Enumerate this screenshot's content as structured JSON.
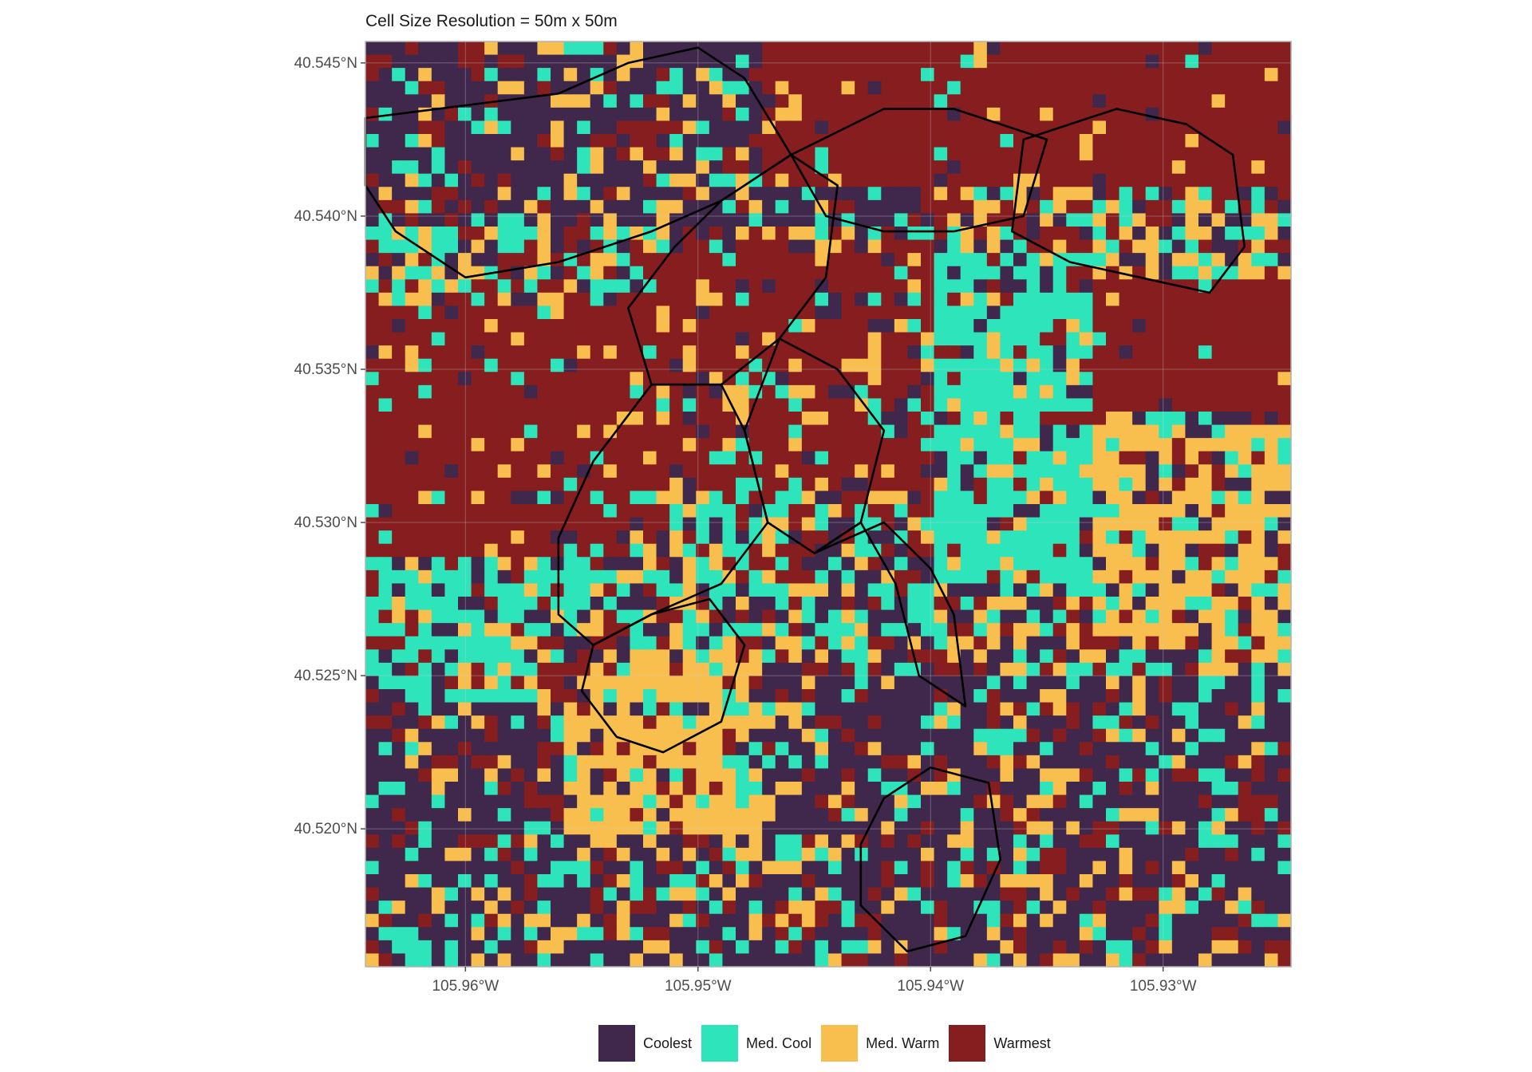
{
  "title": "Cell Size Resolution = 50m x 50m",
  "chart_data": {
    "type": "heatmap",
    "title": "Cell Size Resolution = 50m x 50m",
    "lon_range": [
      -105.9643,
      -105.9245
    ],
    "lat_range": [
      40.5155,
      40.5457
    ],
    "x_ticks": [
      {
        "value": -105.96,
        "label": "105.96°W"
      },
      {
        "value": -105.95,
        "label": "105.95°W"
      },
      {
        "value": -105.94,
        "label": "105.94°W"
      },
      {
        "value": -105.93,
        "label": "105.93°W"
      }
    ],
    "y_ticks": [
      {
        "value": 40.545,
        "label": "40.545°N"
      },
      {
        "value": 40.54,
        "label": "40.540°N"
      },
      {
        "value": 40.535,
        "label": "40.535°N"
      },
      {
        "value": 40.53,
        "label": "40.530°N"
      },
      {
        "value": 40.525,
        "label": "40.525°N"
      },
      {
        "value": 40.52,
        "label": "40.520°N"
      }
    ],
    "grid": true,
    "legend": {
      "position": "bottom",
      "entries": [
        {
          "label": "Coolest",
          "color": "#40284d"
        },
        {
          "label": "Med. Cool",
          "color": "#2ee5bb"
        },
        {
          "label": "Med. Warm",
          "color": "#f8be4e"
        },
        {
          "label": "Warmest",
          "color": "#861d1f"
        }
      ]
    },
    "cell_grid": {
      "cols": 70,
      "rows": 70,
      "classes": [
        "Coolest",
        "Med. Cool",
        "Med. Warm",
        "Warmest"
      ],
      "zones": [
        {
          "lon": [
            -105.9643,
            -105.9475
          ],
          "lat": [
            40.5432,
            40.5457
          ],
          "class": "Med. Warm",
          "mix": 0.25
        },
        {
          "lon": [
            -105.9643,
            -105.94
          ],
          "lat": [
            40.5395,
            40.5457
          ],
          "class": "Coolest",
          "mix": 0.5
        },
        {
          "lon": [
            -105.9475,
            -105.9245
          ],
          "lat": [
            40.541,
            40.5457
          ],
          "class": "Warmest",
          "mix": 0.12
        },
        {
          "lon": [
            -105.9643,
            -105.953
          ],
          "lat": [
            40.529,
            40.537
          ],
          "class": "Warmest",
          "mix": 0.2
        },
        {
          "lon": [
            -105.953,
            -105.939
          ],
          "lat": [
            40.531,
            40.539
          ],
          "class": "Warmest",
          "mix": 0.35
        },
        {
          "lon": [
            -105.933,
            -105.9245
          ],
          "lat": [
            40.5335,
            40.538
          ],
          "class": "Warmest",
          "mix": 0.1
        },
        {
          "lon": [
            -105.94,
            -105.933
          ],
          "lat": [
            40.528,
            40.539
          ],
          "class": "Med. Cool",
          "mix": 0.45
        },
        {
          "lon": [
            -105.933,
            -105.9245
          ],
          "lat": [
            40.526,
            40.533
          ],
          "class": "Med. Warm",
          "mix": 0.5
        },
        {
          "lon": [
            -105.9643,
            -105.9245
          ],
          "lat": [
            40.5155,
            40.525
          ],
          "class": "Coolest",
          "mix": 0.6
        },
        {
          "lon": [
            -105.956,
            -105.947
          ],
          "lat": [
            40.52,
            40.526
          ],
          "class": "Med. Warm",
          "mix": 0.45
        },
        {
          "lon": [
            -105.9643,
            -105.9545
          ],
          "lat": [
            40.524,
            40.529
          ],
          "class": "Med. Cool",
          "mix": 0.55
        }
      ]
    },
    "boundary_polygons": [
      [
        [
          -105.9643,
          40.5432
        ],
        [
          -105.956,
          40.544
        ],
        [
          -105.953,
          40.545
        ],
        [
          -105.95,
          40.5455
        ],
        [
          -105.948,
          40.5445
        ],
        [
          -105.946,
          40.542
        ],
        [
          -105.949,
          40.5405
        ],
        [
          -105.952,
          40.5395
        ],
        [
          -105.956,
          40.5385
        ],
        [
          -105.96,
          40.538
        ],
        [
          -105.963,
          40.5395
        ],
        [
          -105.9643,
          40.541
        ],
        [
          -105.9643,
          40.5432
        ]
      ],
      [
        [
          -105.949,
          40.5405
        ],
        [
          -105.946,
          40.542
        ],
        [
          -105.944,
          40.541
        ],
        [
          -105.9445,
          40.538
        ],
        [
          -105.9465,
          40.536
        ],
        [
          -105.949,
          40.5345
        ],
        [
          -105.952,
          40.5345
        ],
        [
          -105.953,
          40.537
        ],
        [
          -105.951,
          40.539
        ],
        [
          -105.949,
          40.5405
        ]
      ],
      [
        [
          -105.946,
          40.542
        ],
        [
          -105.942,
          40.5435
        ],
        [
          -105.939,
          40.5435
        ],
        [
          -105.935,
          40.5425
        ],
        [
          -105.936,
          40.54
        ],
        [
          -105.939,
          40.5395
        ],
        [
          -105.942,
          40.5395
        ],
        [
          -105.9445,
          40.54
        ],
        [
          -105.946,
          40.542
        ]
      ],
      [
        [
          -105.936,
          40.5425
        ],
        [
          -105.932,
          40.5435
        ],
        [
          -105.929,
          40.543
        ],
        [
          -105.927,
          40.542
        ],
        [
          -105.9265,
          40.539
        ],
        [
          -105.928,
          40.5375
        ],
        [
          -105.931,
          40.538
        ],
        [
          -105.934,
          40.5385
        ],
        [
          -105.9365,
          40.5395
        ],
        [
          -105.936,
          40.5425
        ]
      ],
      [
        [
          -105.9465,
          40.536
        ],
        [
          -105.944,
          40.535
        ],
        [
          -105.942,
          40.533
        ],
        [
          -105.943,
          40.53
        ],
        [
          -105.945,
          40.529
        ],
        [
          -105.947,
          40.53
        ],
        [
          -105.948,
          40.533
        ],
        [
          -105.9465,
          40.536
        ]
      ],
      [
        [
          -105.952,
          40.5345
        ],
        [
          -105.949,
          40.5345
        ],
        [
          -105.948,
          40.533
        ],
        [
          -105.947,
          40.53
        ],
        [
          -105.949,
          40.528
        ],
        [
          -105.952,
          40.527
        ],
        [
          -105.9545,
          40.526
        ],
        [
          -105.956,
          40.527
        ],
        [
          -105.956,
          40.5295
        ],
        [
          -105.9545,
          40.532
        ],
        [
          -105.952,
          40.5345
        ]
      ],
      [
        [
          -105.945,
          40.529
        ],
        [
          -105.943,
          40.53
        ],
        [
          -105.9415,
          40.528
        ],
        [
          -105.9405,
          40.525
        ],
        [
          -105.9385,
          40.524
        ],
        [
          -105.939,
          40.527
        ],
        [
          -105.94,
          40.5285
        ],
        [
          -105.942,
          40.53
        ],
        [
          -105.945,
          40.529
        ]
      ],
      [
        [
          -105.9545,
          40.526
        ],
        [
          -105.952,
          40.527
        ],
        [
          -105.9495,
          40.5275
        ],
        [
          -105.948,
          40.526
        ],
        [
          -105.949,
          40.5235
        ],
        [
          -105.9515,
          40.5225
        ],
        [
          -105.9535,
          40.523
        ],
        [
          -105.955,
          40.5245
        ],
        [
          -105.9545,
          40.526
        ]
      ],
      [
        [
          -105.942,
          40.521
        ],
        [
          -105.94,
          40.522
        ],
        [
          -105.9375,
          40.5215
        ],
        [
          -105.937,
          40.519
        ],
        [
          -105.9385,
          40.5165
        ],
        [
          -105.941,
          40.516
        ],
        [
          -105.943,
          40.5175
        ],
        [
          -105.943,
          40.5195
        ],
        [
          -105.942,
          40.521
        ]
      ]
    ]
  }
}
